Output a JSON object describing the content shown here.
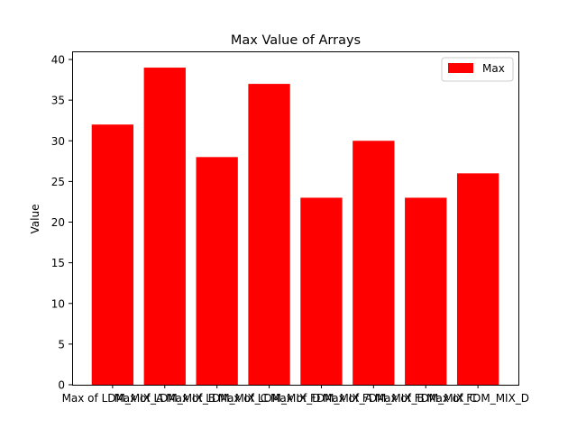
{
  "chart_data": {
    "type": "bar",
    "title": "Max Value of Arrays",
    "xlabel": "",
    "ylabel": "Value",
    "categories": [
      "Max of LDM_MIX_A",
      "Max of LDM_MIX_B",
      "Max of LDM_MIX_C",
      "Max of LDM_MIX_D",
      "Max of FDM_MIX_A",
      "Max of FDM_MIX_B",
      "Max of FDM_MIX_C",
      "Max of FDM_MIX_D"
    ],
    "series": [
      {
        "name": "Max",
        "values": [
          32,
          39,
          28,
          37,
          23,
          30,
          23,
          26
        ],
        "color": "#ff0000"
      }
    ],
    "ylim": [
      0,
      41
    ],
    "yticks": [
      0,
      5,
      10,
      15,
      20,
      25,
      30,
      35,
      40
    ],
    "legend_position": "top-right",
    "grid": false
  }
}
